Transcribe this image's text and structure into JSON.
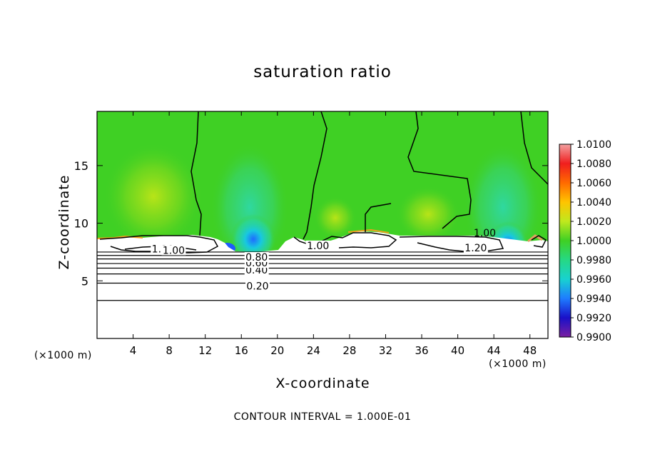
{
  "chart_data": {
    "type": "heatmap",
    "title": "saturation ratio",
    "xlabel": "X-coordinate",
    "ylabel": "Z-coordinate",
    "x_unit_left": "(×1000 m)",
    "x_unit_right": "(×1000 m)",
    "x_ticks": [
      4,
      8,
      12,
      16,
      20,
      24,
      28,
      32,
      36,
      40,
      44,
      48
    ],
    "y_ticks": [
      5,
      10,
      15
    ],
    "xlim": [
      0,
      50
    ],
    "ylim": [
      0,
      19.7
    ],
    "colorbar_levels": [
      "0.9900",
      "0.9920",
      "0.9940",
      "0.9960",
      "0.9980",
      "1.0000",
      "1.0020",
      "1.0040",
      "1.0060",
      "1.0080",
      "1.0100"
    ],
    "colorbar_colors": [
      "#7a1fa2",
      "#1a10c8",
      "#1e7cff",
      "#18d2d0",
      "#26d884",
      "#3fd024",
      "#c0e81e",
      "#ffc400",
      "#ff6a00",
      "#f01e1e",
      "#f2a0a0"
    ],
    "background_value": "1.0000",
    "contour_lines_z": [
      3.3,
      4.8,
      5.6,
      6.1,
      6.5,
      6.9,
      7.2,
      7.5
    ],
    "contour_labels": [
      {
        "text": "0.20",
        "x": 17.8,
        "z": 4.5
      },
      {
        "text": "0.40",
        "x": 17.7,
        "z": 5.9
      },
      {
        "text": "0.60",
        "x": 17.7,
        "z": 6.5
      },
      {
        "text": "0.80",
        "x": 17.7,
        "z": 7.0
      },
      {
        "text": "1.20",
        "x": 7.3,
        "z": 7.7
      },
      {
        "text": "1.00",
        "x": 8.5,
        "z": 7.6
      },
      {
        "text": "1.00",
        "x": 24.5,
        "z": 8.0
      },
      {
        "text": "1.20",
        "x": 42.0,
        "z": 7.8
      },
      {
        "text": "1.00",
        "x": 43.0,
        "z": 9.1
      }
    ],
    "contour_interval_text": "CONTOUR INTERVAL = 1.000E-01"
  }
}
